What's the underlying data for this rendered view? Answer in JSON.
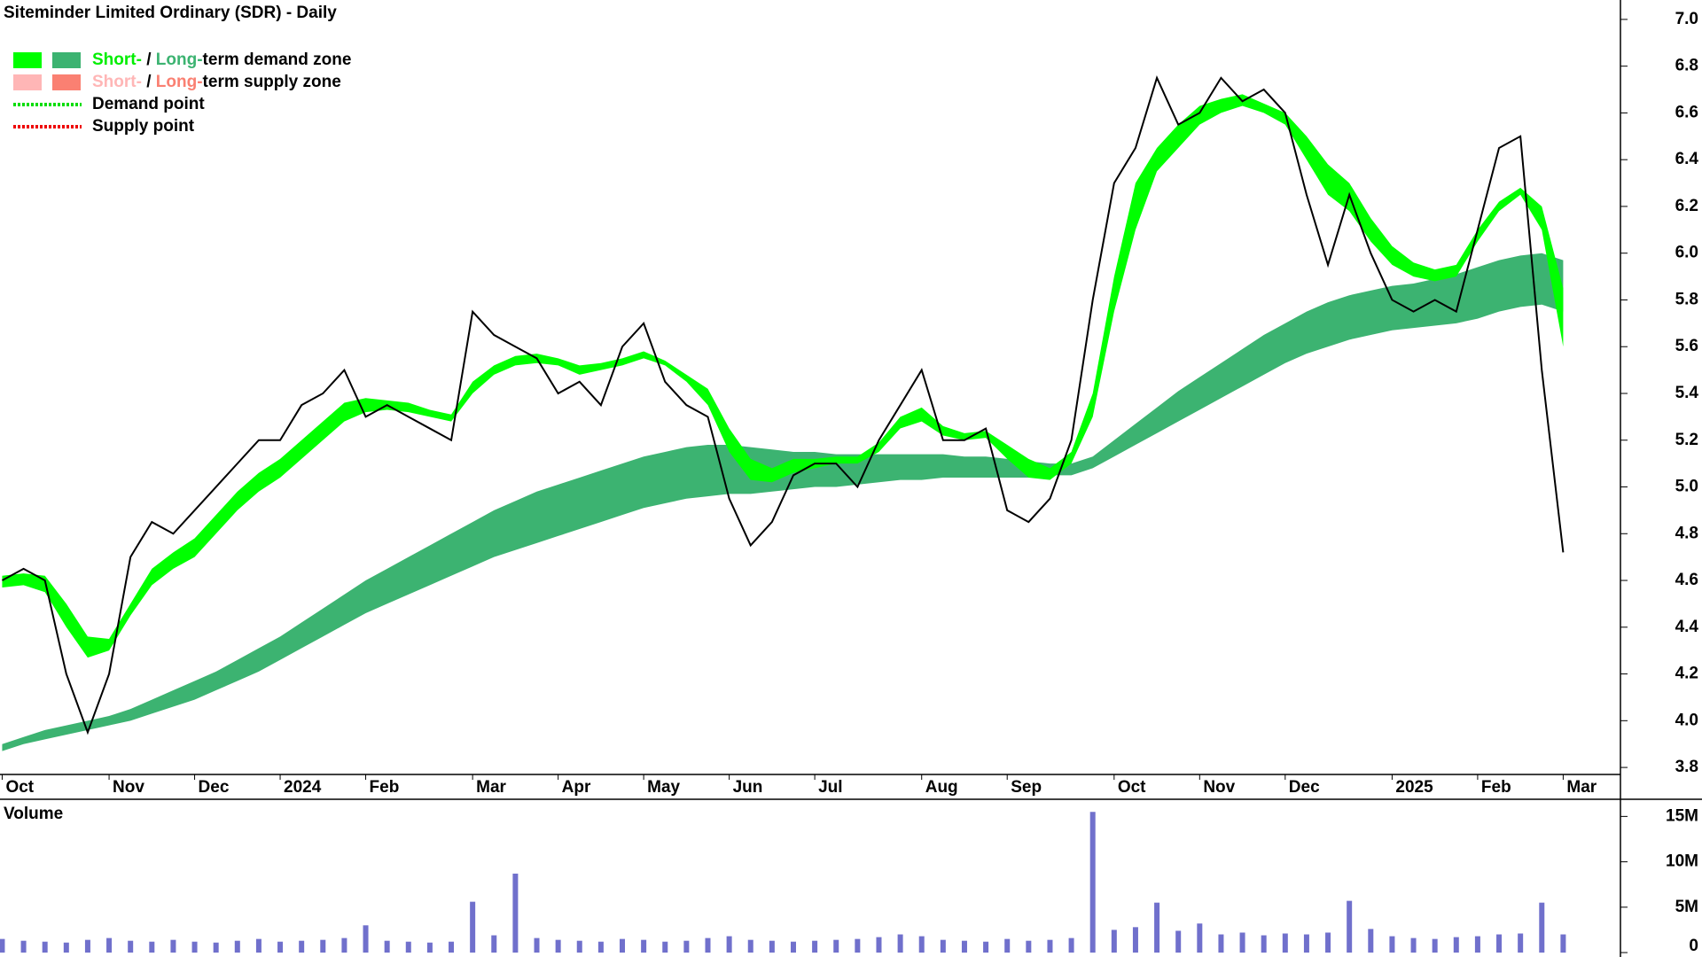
{
  "title": "Siteminder Limited Ordinary (SDR) - Daily",
  "legend": [
    {
      "parts": [
        "Short-",
        " / ",
        "Long-",
        "term demand zone"
      ]
    },
    {
      "parts": [
        "Short-",
        " / ",
        "Long-",
        "term supply zone"
      ]
    },
    {
      "parts": [
        "Demand point"
      ]
    },
    {
      "parts": [
        "Supply point"
      ]
    }
  ],
  "chart_data": [
    {
      "type": "price",
      "categories": [
        "Oct",
        null,
        null,
        null,
        null,
        "Nov",
        null,
        null,
        null,
        "Dec",
        null,
        null,
        null,
        "2024",
        null,
        null,
        null,
        "Feb",
        null,
        null,
        null,
        null,
        "Mar",
        null,
        null,
        null,
        "Apr",
        null,
        null,
        null,
        "May",
        null,
        null,
        null,
        "Jun",
        null,
        null,
        null,
        "Jul",
        null,
        null,
        null,
        null,
        "Aug",
        null,
        null,
        null,
        "Sep",
        null,
        null,
        null,
        null,
        "Oct",
        null,
        null,
        null,
        "Nov",
        null,
        null,
        null,
        "Dec",
        null,
        null,
        null,
        null,
        "2025",
        null,
        null,
        null,
        "Feb",
        null,
        null,
        null,
        "Mar"
      ],
      "close": [
        4.6,
        4.65,
        4.6,
        4.2,
        3.95,
        4.2,
        4.7,
        4.85,
        4.8,
        4.9,
        5.0,
        5.1,
        5.2,
        5.2,
        5.35,
        5.4,
        5.5,
        5.3,
        5.35,
        5.3,
        5.25,
        5.2,
        5.75,
        5.65,
        5.6,
        5.55,
        5.4,
        5.45,
        5.35,
        5.6,
        5.7,
        5.45,
        5.35,
        5.3,
        4.95,
        4.75,
        4.85,
        5.05,
        5.1,
        5.1,
        5.0,
        5.2,
        5.35,
        5.5,
        5.2,
        5.2,
        5.25,
        4.9,
        4.85,
        4.95,
        5.2,
        5.8,
        6.3,
        6.45,
        6.75,
        6.55,
        6.6,
        6.75,
        6.65,
        6.7,
        6.6,
        6.25,
        5.95,
        6.25,
        6.0,
        5.8,
        5.75,
        5.8,
        5.75,
        6.1,
        6.45,
        6.5,
        5.5,
        4.72
      ],
      "close_color": "#000000",
      "long_zone": {
        "color": "#3cb371",
        "lower": [
          3.87,
          3.9,
          3.92,
          3.94,
          3.96,
          3.98,
          4.0,
          4.03,
          4.06,
          4.09,
          4.13,
          4.17,
          4.21,
          4.26,
          4.31,
          4.36,
          4.41,
          4.46,
          4.5,
          4.54,
          4.58,
          4.62,
          4.66,
          4.7,
          4.73,
          4.76,
          4.79,
          4.82,
          4.85,
          4.88,
          4.91,
          4.93,
          4.95,
          4.96,
          4.97,
          4.97,
          4.98,
          4.99,
          5.0,
          5.0,
          5.01,
          5.02,
          5.03,
          5.03,
          5.04,
          5.04,
          5.04,
          5.04,
          5.04,
          5.05,
          5.05,
          5.08,
          5.13,
          5.18,
          5.23,
          5.28,
          5.33,
          5.38,
          5.43,
          5.48,
          5.53,
          5.57,
          5.6,
          5.63,
          5.65,
          5.67,
          5.68,
          5.69,
          5.7,
          5.72,
          5.75,
          5.77,
          5.78,
          5.75
        ],
        "upper": [
          3.9,
          3.93,
          3.96,
          3.98,
          4.0,
          4.02,
          4.05,
          4.09,
          4.13,
          4.17,
          4.21,
          4.26,
          4.31,
          4.36,
          4.42,
          4.48,
          4.54,
          4.6,
          4.65,
          4.7,
          4.75,
          4.8,
          4.85,
          4.9,
          4.94,
          4.98,
          5.01,
          5.04,
          5.07,
          5.1,
          5.13,
          5.15,
          5.17,
          5.18,
          5.18,
          5.17,
          5.16,
          5.15,
          5.15,
          5.14,
          5.14,
          5.14,
          5.14,
          5.14,
          5.14,
          5.13,
          5.13,
          5.12,
          5.11,
          5.1,
          5.1,
          5.13,
          5.2,
          5.27,
          5.34,
          5.41,
          5.47,
          5.53,
          5.59,
          5.65,
          5.7,
          5.75,
          5.79,
          5.82,
          5.84,
          5.86,
          5.87,
          5.89,
          5.91,
          5.94,
          5.97,
          5.99,
          6.0,
          5.97
        ]
      },
      "short_zone": {
        "color": "#00ff00",
        "lower": [
          4.57,
          4.58,
          4.55,
          4.4,
          4.27,
          4.3,
          4.45,
          4.58,
          4.65,
          4.7,
          4.8,
          4.9,
          4.98,
          5.04,
          5.12,
          5.2,
          5.28,
          5.32,
          5.33,
          5.32,
          5.3,
          5.28,
          5.4,
          5.48,
          5.52,
          5.53,
          5.52,
          5.48,
          5.5,
          5.52,
          5.55,
          5.52,
          5.45,
          5.35,
          5.15,
          5.03,
          5.02,
          5.06,
          5.08,
          5.1,
          5.1,
          5.15,
          5.25,
          5.28,
          5.22,
          5.2,
          5.21,
          5.12,
          5.04,
          5.03,
          5.1,
          5.3,
          5.75,
          6.1,
          6.35,
          6.45,
          6.55,
          6.6,
          6.63,
          6.6,
          6.55,
          6.4,
          6.25,
          6.18,
          6.05,
          5.95,
          5.9,
          5.88,
          5.9,
          6.05,
          6.18,
          6.25,
          6.1,
          5.6
        ],
        "upper": [
          4.62,
          4.63,
          4.62,
          4.5,
          4.36,
          4.35,
          4.5,
          4.65,
          4.72,
          4.78,
          4.88,
          4.98,
          5.06,
          5.12,
          5.2,
          5.28,
          5.36,
          5.38,
          5.37,
          5.36,
          5.33,
          5.31,
          5.45,
          5.52,
          5.56,
          5.57,
          5.55,
          5.52,
          5.53,
          5.55,
          5.58,
          5.54,
          5.48,
          5.42,
          5.25,
          5.12,
          5.08,
          5.12,
          5.12,
          5.13,
          5.13,
          5.19,
          5.3,
          5.34,
          5.26,
          5.23,
          5.24,
          5.18,
          5.12,
          5.08,
          5.15,
          5.4,
          5.9,
          6.3,
          6.45,
          6.55,
          6.63,
          6.66,
          6.68,
          6.64,
          6.6,
          6.5,
          6.38,
          6.3,
          6.15,
          6.03,
          5.96,
          5.93,
          5.95,
          6.1,
          6.22,
          6.28,
          6.2,
          5.85
        ]
      },
      "ylim": [
        3.77,
        7.083
      ],
      "yticks": [
        3.8,
        {
          "value": 4,
          "label": "4.0"
        },
        4.2,
        4.4,
        4.6,
        4.8,
        {
          "value": 5,
          "label": "5.0"
        },
        5.2,
        5.4,
        5.6,
        5.8,
        {
          "value": 6,
          "label": "6.0"
        },
        6.2,
        6.4,
        6.6,
        6.8,
        {
          "value": 7,
          "label": "7.0"
        }
      ]
    },
    {
      "type": "volume",
      "label": "Volume",
      "color": "#7070cc",
      "values": [
        1500000,
        1300000,
        1200000,
        1100000,
        1400000,
        1600000,
        1300000,
        1200000,
        1400000,
        1200000,
        1100000,
        1300000,
        1500000,
        1200000,
        1300000,
        1400000,
        1600000,
        3000000,
        1300000,
        1200000,
        1100000,
        1200000,
        5600000,
        1900000,
        8700000,
        1600000,
        1400000,
        1300000,
        1200000,
        1500000,
        1400000,
        1200000,
        1300000,
        1600000,
        1800000,
        1400000,
        1300000,
        1200000,
        1300000,
        1400000,
        1500000,
        1700000,
        2000000,
        1800000,
        1400000,
        1300000,
        1200000,
        1500000,
        1300000,
        1400000,
        1600000,
        15500000,
        2500000,
        2800000,
        5500000,
        2400000,
        3200000,
        2000000,
        2200000,
        1900000,
        2100000,
        2000000,
        2200000,
        5700000,
        2600000,
        1800000,
        1600000,
        1500000,
        1700000,
        1800000,
        2000000,
        2100000,
        5500000,
        2000000
      ],
      "ylim": [
        0,
        16500000
      ],
      "yticks": [
        0,
        {
          "value": 5000000,
          "label": "5M"
        },
        {
          "value": 10000000,
          "label": "10M"
        },
        {
          "value": 15000000,
          "label": "15M"
        }
      ]
    }
  ]
}
